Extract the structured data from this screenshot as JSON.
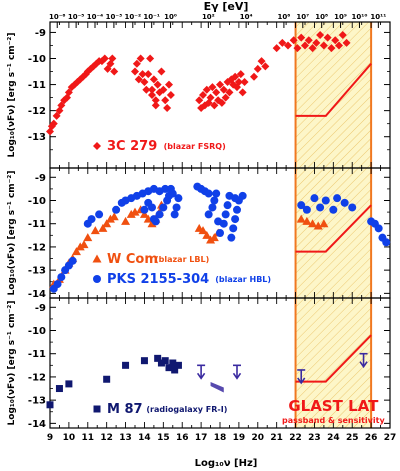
{
  "title": "",
  "top_axis": {
    "label": "Eγ [eV]",
    "ticks": [
      {
        "x": 9.383,
        "label": "10⁻⁶"
      },
      {
        "x": 10.383,
        "label": "10⁻⁵"
      },
      {
        "x": 11.383,
        "label": "10⁻⁴"
      },
      {
        "x": 12.383,
        "label": "10⁻³"
      },
      {
        "x": 13.383,
        "label": "10⁻²"
      },
      {
        "x": 14.383,
        "label": "10⁻¹"
      },
      {
        "x": 15.383,
        "label": "10⁰"
      },
      {
        "x": 17.383,
        "label": "10²"
      },
      {
        "x": 19.383,
        "label": "10⁴"
      },
      {
        "x": 21.383,
        "label": "10⁶"
      },
      {
        "x": 22.383,
        "label": "10⁷"
      },
      {
        "x": 23.383,
        "label": "10⁸"
      },
      {
        "x": 24.383,
        "label": "10⁹"
      },
      {
        "x": 25.383,
        "label": "10¹⁰"
      },
      {
        "x": 26.383,
        "label": "10¹¹"
      }
    ]
  },
  "x_axis": {
    "label": "Log₁₀ν   [Hz]",
    "range": [
      9,
      27
    ],
    "ticks": [
      "9",
      "10",
      "11",
      "12",
      "13",
      "14",
      "15",
      "16",
      "17",
      "18",
      "19",
      "20",
      "21",
      "22",
      "23",
      "24",
      "25",
      "26",
      "27"
    ]
  },
  "y_axis_label": "Log₁₀(νFν) [erg s⁻¹ cm⁻²]",
  "glast_band": {
    "range": [
      22,
      26
    ],
    "label": "GLAST LAT",
    "sublabel": "passband & sensitivity",
    "color": "#f07820",
    "fill": "#fdf6c8"
  },
  "panels": [
    {
      "id": "3c279",
      "ylim": [
        -14.2,
        -8.6
      ],
      "yticks": [
        "-13",
        "-12",
        "-11",
        "-10",
        "-9"
      ],
      "legend": [
        {
          "marker": "diamond",
          "color": "#f01818",
          "name": "3C 279",
          "note": "(blazar FSRQ)"
        }
      ],
      "sensitivity": [
        [
          22,
          -12.2
        ],
        [
          23.6,
          -12.2
        ],
        [
          26,
          -10.2
        ]
      ],
      "series": [
        {
          "marker": "diamond",
          "color": "#f01818",
          "points": [
            [
              9.0,
              -12.8
            ],
            [
              9.1,
              -12.6
            ],
            [
              9.2,
              -12.5
            ],
            [
              9.35,
              -12.2
            ],
            [
              9.5,
              -12.0
            ],
            [
              9.6,
              -11.8
            ],
            [
              9.75,
              -11.6
            ],
            [
              9.9,
              -11.5
            ],
            [
              10.0,
              -11.3
            ],
            [
              10.15,
              -11.1
            ],
            [
              10.3,
              -11.0
            ],
            [
              10.45,
              -10.9
            ],
            [
              10.6,
              -10.8
            ],
            [
              10.75,
              -10.7
            ],
            [
              10.9,
              -10.6
            ],
            [
              11.0,
              -10.5
            ],
            [
              11.15,
              -10.4
            ],
            [
              11.3,
              -10.3
            ],
            [
              11.45,
              -10.2
            ],
            [
              11.6,
              -10.1
            ],
            [
              11.75,
              -10.1
            ],
            [
              11.9,
              -10.0
            ],
            [
              12.05,
              -10.4
            ],
            [
              12.2,
              -10.2
            ],
            [
              12.3,
              -10.0
            ],
            [
              12.4,
              -10.5
            ],
            [
              13.5,
              -10.5
            ],
            [
              13.6,
              -10.2
            ],
            [
              13.7,
              -10.8
            ],
            [
              13.8,
              -10.0
            ],
            [
              13.9,
              -10.6
            ],
            [
              14.0,
              -10.9
            ],
            [
              14.1,
              -11.2
            ],
            [
              14.2,
              -10.6
            ],
            [
              14.3,
              -10.0
            ],
            [
              14.4,
              -11.4
            ],
            [
              14.5,
              -10.8
            ],
            [
              14.6,
              -11.6
            ],
            [
              14.7,
              -11.0
            ],
            [
              14.4,
              -11.2
            ],
            [
              14.6,
              -11.8
            ],
            [
              14.8,
              -11.3
            ],
            [
              14.9,
              -10.5
            ],
            [
              15.0,
              -11.2
            ],
            [
              15.1,
              -11.6
            ],
            [
              15.2,
              -11.9
            ],
            [
              15.3,
              -11.0
            ],
            [
              15.4,
              -11.4
            ],
            [
              16.9,
              -11.6
            ],
            [
              17.0,
              -11.9
            ],
            [
              17.1,
              -11.4
            ],
            [
              17.2,
              -11.8
            ],
            [
              17.3,
              -11.2
            ],
            [
              17.4,
              -11.7
            ],
            [
              17.5,
              -11.5
            ],
            [
              17.6,
              -11.1
            ],
            [
              17.7,
              -11.8
            ],
            [
              17.8,
              -11.3
            ],
            [
              17.9,
              -11.6
            ],
            [
              18.0,
              -11.0
            ],
            [
              18.1,
              -11.7
            ],
            [
              18.2,
              -11.2
            ],
            [
              18.3,
              -11.5
            ],
            [
              18.4,
              -10.9
            ],
            [
              18.5,
              -11.3
            ],
            [
              18.6,
              -10.8
            ],
            [
              18.7,
              -11.0
            ],
            [
              18.8,
              -10.7
            ],
            [
              18.9,
              -11.1
            ],
            [
              19.0,
              -10.9
            ],
            [
              19.1,
              -10.6
            ],
            [
              19.2,
              -11.3
            ],
            [
              19.3,
              -10.9
            ],
            [
              19.8,
              -10.7
            ],
            [
              20.0,
              -10.4
            ],
            [
              20.2,
              -10.1
            ],
            [
              20.4,
              -10.3
            ],
            [
              21.0,
              -9.6
            ],
            [
              21.3,
              -9.4
            ],
            [
              21.6,
              -9.5
            ],
            [
              21.9,
              -9.3
            ],
            [
              22.1,
              -9.6
            ],
            [
              22.3,
              -9.2
            ],
            [
              22.5,
              -9.5
            ],
            [
              22.7,
              -9.3
            ],
            [
              22.9,
              -9.6
            ],
            [
              23.1,
              -9.4
            ],
            [
              23.3,
              -9.1
            ],
            [
              23.5,
              -9.5
            ],
            [
              23.7,
              -9.2
            ],
            [
              23.9,
              -9.6
            ],
            [
              24.1,
              -9.3
            ],
            [
              24.3,
              -9.5
            ],
            [
              24.5,
              -9.1
            ],
            [
              24.7,
              -9.4
            ]
          ]
        }
      ]
    },
    {
      "id": "wcom_pks",
      "ylim": [
        -14.2,
        -8.6
      ],
      "yticks": [
        "-14",
        "-13",
        "-12",
        "-11",
        "-10",
        "-9"
      ],
      "legend": [
        {
          "marker": "triangle",
          "color": "#f05010",
          "name": "W Com",
          "note": "(blazar LBL)"
        },
        {
          "marker": "circle",
          "color": "#1040e8",
          "name": "PKS 2155-304",
          "note": "(blazar HBL)"
        }
      ],
      "sensitivity": [
        [
          22,
          -12.2
        ],
        [
          23.6,
          -12.2
        ],
        [
          26,
          -10.2
        ]
      ],
      "series": [
        {
          "marker": "triangle",
          "color": "#f05010",
          "points": [
            [
              9.2,
              -13.6
            ],
            [
              9.5,
              -13.4
            ],
            [
              9.8,
              -13.0
            ],
            [
              10.0,
              -12.7
            ],
            [
              10.2,
              -12.5
            ],
            [
              10.4,
              -12.2
            ],
            [
              10.6,
              -12.0
            ],
            [
              10.8,
              -11.9
            ],
            [
              11.0,
              -11.6
            ],
            [
              11.4,
              -11.3
            ],
            [
              11.8,
              -11.2
            ],
            [
              12.0,
              -11.0
            ],
            [
              12.2,
              -10.8
            ],
            [
              12.4,
              -10.7
            ],
            [
              13.0,
              -10.9
            ],
            [
              13.3,
              -10.6
            ],
            [
              13.5,
              -10.5
            ],
            [
              13.8,
              -10.4
            ],
            [
              14.0,
              -10.6
            ],
            [
              14.2,
              -10.8
            ],
            [
              14.4,
              -11.0
            ],
            [
              14.6,
              -10.8
            ],
            [
              14.8,
              -10.5
            ],
            [
              14.9,
              -10.2
            ],
            [
              16.9,
              -11.2
            ],
            [
              17.1,
              -11.3
            ],
            [
              17.3,
              -11.5
            ],
            [
              17.5,
              -11.7
            ],
            [
              17.7,
              -11.6
            ],
            [
              17.9,
              -11.4
            ],
            [
              22.3,
              -10.8
            ],
            [
              22.6,
              -10.9
            ],
            [
              22.9,
              -11.0
            ],
            [
              23.2,
              -11.1
            ],
            [
              23.5,
              -11.0
            ]
          ]
        },
        {
          "marker": "circle",
          "color": "#1040e8",
          "points": [
            [
              9.2,
              -13.8
            ],
            [
              9.4,
              -13.6
            ],
            [
              9.6,
              -13.3
            ],
            [
              9.8,
              -13.0
            ],
            [
              10.0,
              -12.8
            ],
            [
              10.2,
              -12.6
            ],
            [
              11.0,
              -11.0
            ],
            [
              11.2,
              -10.8
            ],
            [
              11.6,
              -10.6
            ],
            [
              12.5,
              -10.4
            ],
            [
              12.8,
              -10.1
            ],
            [
              13.0,
              -10.0
            ],
            [
              13.3,
              -9.9
            ],
            [
              13.6,
              -9.8
            ],
            [
              13.9,
              -9.7
            ],
            [
              14.2,
              -9.6
            ],
            [
              14.5,
              -9.5
            ],
            [
              14.8,
              -9.6
            ],
            [
              15.1,
              -9.5
            ],
            [
              15.4,
              -9.5
            ],
            [
              14.0,
              -10.4
            ],
            [
              14.2,
              -10.1
            ],
            [
              14.4,
              -10.3
            ],
            [
              14.5,
              -10.8
            ],
            [
              14.6,
              -10.9
            ],
            [
              14.8,
              -10.6
            ],
            [
              15.0,
              -10.3
            ],
            [
              15.2,
              -10.0
            ],
            [
              15.3,
              -9.8
            ],
            [
              15.5,
              -9.7
            ],
            [
              15.6,
              -10.6
            ],
            [
              15.7,
              -10.3
            ],
            [
              15.8,
              -9.9
            ],
            [
              16.8,
              -9.4
            ],
            [
              17.0,
              -9.5
            ],
            [
              17.2,
              -9.6
            ],
            [
              17.4,
              -9.7
            ],
            [
              17.4,
              -10.6
            ],
            [
              17.6,
              -10.3
            ],
            [
              17.7,
              -10.0
            ],
            [
              17.8,
              -9.7
            ],
            [
              17.9,
              -10.9
            ],
            [
              18.0,
              -11.4
            ],
            [
              18.2,
              -11.0
            ],
            [
              18.3,
              -10.6
            ],
            [
              18.4,
              -10.2
            ],
            [
              18.5,
              -9.8
            ],
            [
              18.6,
              -11.6
            ],
            [
              18.7,
              -11.2
            ],
            [
              18.8,
              -10.8
            ],
            [
              18.9,
              -10.4
            ],
            [
              19.0,
              -10.0
            ],
            [
              18.8,
              -9.9
            ],
            [
              19.2,
              -9.8
            ],
            [
              22.3,
              -10.2
            ],
            [
              22.6,
              -10.4
            ],
            [
              23.0,
              -9.9
            ],
            [
              23.3,
              -10.3
            ],
            [
              23.6,
              -10.0
            ],
            [
              24.0,
              -10.4
            ],
            [
              24.2,
              -9.9
            ],
            [
              24.6,
              -10.1
            ],
            [
              25.0,
              -10.3
            ],
            [
              26.0,
              -10.9
            ],
            [
              26.2,
              -11.0
            ],
            [
              26.4,
              -11.2
            ],
            [
              26.6,
              -11.6
            ],
            [
              26.8,
              -11.8
            ]
          ]
        }
      ]
    },
    {
      "id": "m87",
      "ylim": [
        -14.2,
        -8.6
      ],
      "yticks": [
        "-14",
        "-13",
        "-12",
        "-11",
        "-10",
        "-9"
      ],
      "legend": [
        {
          "marker": "square",
          "color": "#101870",
          "name": "M 87",
          "note": "(radiogalaxy FR-I)"
        }
      ],
      "sensitivity": [
        [
          22,
          -12.2
        ],
        [
          23.6,
          -12.2
        ],
        [
          26,
          -10.2
        ]
      ],
      "series": [
        {
          "marker": "square",
          "color": "#101870",
          "points": [
            [
              9.0,
              -13.2
            ],
            [
              9.5,
              -12.5
            ],
            [
              10.0,
              -12.3
            ],
            [
              12.0,
              -12.1
            ],
            [
              13.0,
              -11.5
            ],
            [
              14.0,
              -11.3
            ],
            [
              14.7,
              -11.2
            ],
            [
              14.9,
              -11.4
            ],
            [
              15.1,
              -11.3
            ],
            [
              15.3,
              -11.6
            ],
            [
              15.5,
              -11.4
            ],
            [
              15.6,
              -11.7
            ],
            [
              15.8,
              -11.5
            ]
          ]
        },
        {
          "marker": "upper-limit",
          "color": "#3a2aa0",
          "points": [
            [
              17.0,
              -11.5
            ],
            [
              18.9,
              -11.5
            ],
            [
              22.3,
              -11.7
            ],
            [
              25.6,
              -11.0
            ]
          ]
        },
        {
          "marker": "bowtie",
          "color": "#3a2aa0",
          "points": [
            [
              17.5,
              -12.35
            ],
            [
              18.2,
              -12.5
            ]
          ]
        }
      ]
    }
  ]
}
